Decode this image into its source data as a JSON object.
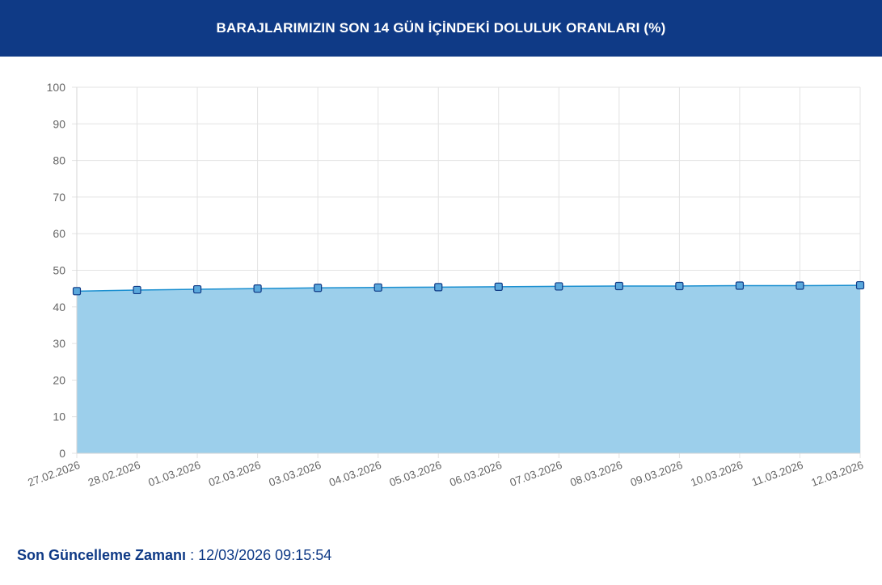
{
  "header": {
    "title": "BARAJLARIMIZIN SON 14 GÜN İÇİNDEKİ DOLULUK ORANLARI (%)"
  },
  "colors": {
    "header_bg": "#0f3a86",
    "area_fill": "#9ccfeb",
    "line": "#1a8fd0",
    "marker_fill": "#5aa8dc",
    "marker_stroke": "#0f3a86",
    "grid": "#e3e3e3",
    "footer_text": "#0f3a86"
  },
  "chart_data": {
    "type": "area",
    "x": [
      "27.02.2026",
      "28.02.2026",
      "01.03.2026",
      "02.03.2026",
      "03.03.2026",
      "04.03.2026",
      "05.03.2026",
      "06.03.2026",
      "07.03.2026",
      "08.03.2026",
      "09.03.2026",
      "10.03.2026",
      "11.03.2026",
      "12.03.2026"
    ],
    "values": [
      44.3,
      44.6,
      44.8,
      45.0,
      45.2,
      45.3,
      45.4,
      45.5,
      45.6,
      45.7,
      45.7,
      45.8,
      45.8,
      45.9
    ],
    "ylim": [
      0,
      100
    ],
    "yticks": [
      "0",
      "10",
      "20",
      "30",
      "40",
      "50",
      "60",
      "70",
      "80",
      "90",
      "100"
    ],
    "grid": true,
    "legend": "none"
  },
  "footer": {
    "label": "Son Güncelleme Zamanı",
    "separator": " : ",
    "value": "12/03/2026 09:15:54"
  }
}
